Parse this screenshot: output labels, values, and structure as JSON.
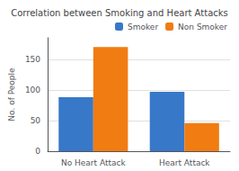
{
  "chart_data": {
    "type": "bar",
    "title": "Correlation between Smoking and Heart Attacks",
    "categories": [
      "No Heart Attack",
      "Heart Attack"
    ],
    "series": [
      {
        "name": "Smoker",
        "color": "#3878c8",
        "values": [
          88,
          97
        ]
      },
      {
        "name": "Non Smoker",
        "color": "#f07c12",
        "values": [
          170,
          46
        ]
      }
    ],
    "ylabel": "No. of People",
    "ylim": [
      0,
      185
    ],
    "yticks": [
      0,
      50,
      100,
      150
    ],
    "grid": true,
    "legend": "upper right"
  }
}
